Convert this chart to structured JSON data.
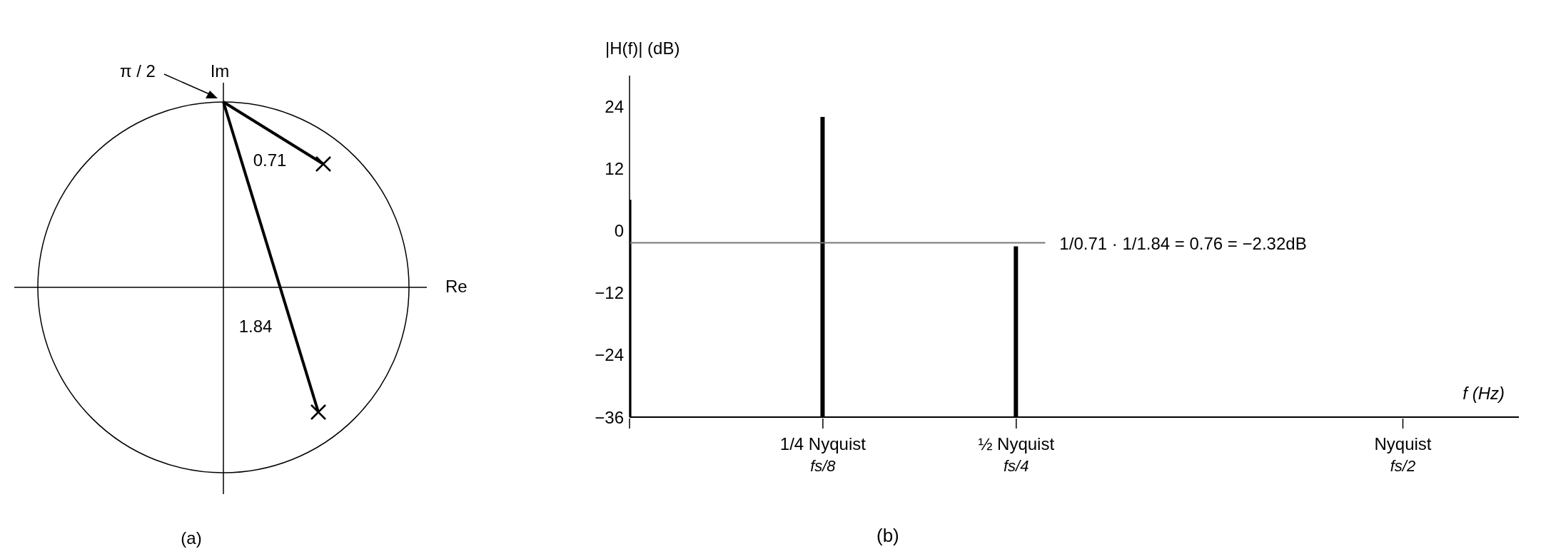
{
  "chart_data": [
    {
      "type": "other",
      "annotations": [
        "π / 2",
        "Im",
        "Re",
        "0.71",
        "1.84",
        "(a)"
      ]
    },
    {
      "type": "bar",
      "categories": [
        null,
        "1/4 Nyquist\nfs/8",
        "½ Nyquist\nfs/4",
        null,
        "Nyquist\nfs/2"
      ],
      "base": [
        -36,
        -36,
        -36,
        null,
        null
      ],
      "values": [
        42,
        58,
        33,
        null,
        null
      ],
      "color": "#000000",
      "ylim": [
        -36,
        30
      ],
      "yticks": [
        24,
        12,
        0,
        {
          "value": -12,
          "label": "−12"
        },
        {
          "value": -24,
          "label": "−24"
        },
        {
          "value": -36,
          "label": "−36"
        }
      ],
      "ylabel": "|H(f)| (dB)",
      "xlabel": "f (Hz)",
      "ref_lines": [
        {
          "axis": "y",
          "value": -2.32,
          "label": "1/0.71 · 1/1.84 = 0.76 = −2.32dB",
          "color": "#777777"
        }
      ],
      "annotations": [
        "(b)"
      ]
    }
  ]
}
